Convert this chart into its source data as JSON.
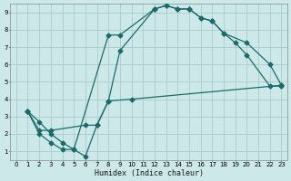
{
  "xlabel": "Humidex (Indice chaleur)",
  "xlim": [
    -0.5,
    23.5
  ],
  "ylim": [
    0.5,
    9.5
  ],
  "xticks": [
    0,
    1,
    2,
    3,
    4,
    5,
    6,
    7,
    8,
    9,
    10,
    11,
    12,
    13,
    14,
    15,
    16,
    17,
    18,
    19,
    20,
    21,
    22,
    23
  ],
  "yticks": [
    1,
    2,
    3,
    4,
    5,
    6,
    7,
    8,
    9
  ],
  "bg_color": "#cce8e8",
  "grid_color": "#aacccc",
  "line_color": "#1a6b6b",
  "line1_x": [
    1,
    2,
    3,
    4,
    5,
    8,
    9,
    12,
    13,
    14,
    15,
    16,
    17,
    18,
    20,
    22,
    23
  ],
  "line1_y": [
    3.3,
    2.7,
    2.0,
    1.5,
    1.1,
    7.7,
    7.7,
    9.2,
    9.4,
    9.2,
    9.2,
    8.7,
    8.5,
    7.8,
    7.25,
    6.0,
    4.8
  ],
  "line2_x": [
    1,
    2,
    3,
    4,
    5,
    6,
    7,
    8,
    9,
    12,
    13,
    14,
    15,
    16,
    17,
    18,
    19,
    20,
    22,
    23
  ],
  "line2_y": [
    3.3,
    2.0,
    1.5,
    1.1,
    1.1,
    0.7,
    2.5,
    3.9,
    6.8,
    9.2,
    9.4,
    9.2,
    9.2,
    8.7,
    8.5,
    7.8,
    7.25,
    6.55,
    4.75,
    4.75
  ],
  "line3_x": [
    1,
    2,
    3,
    6,
    7,
    8,
    10,
    23
  ],
  "line3_y": [
    3.3,
    2.2,
    2.2,
    2.5,
    2.5,
    3.9,
    4.0,
    4.8
  ]
}
